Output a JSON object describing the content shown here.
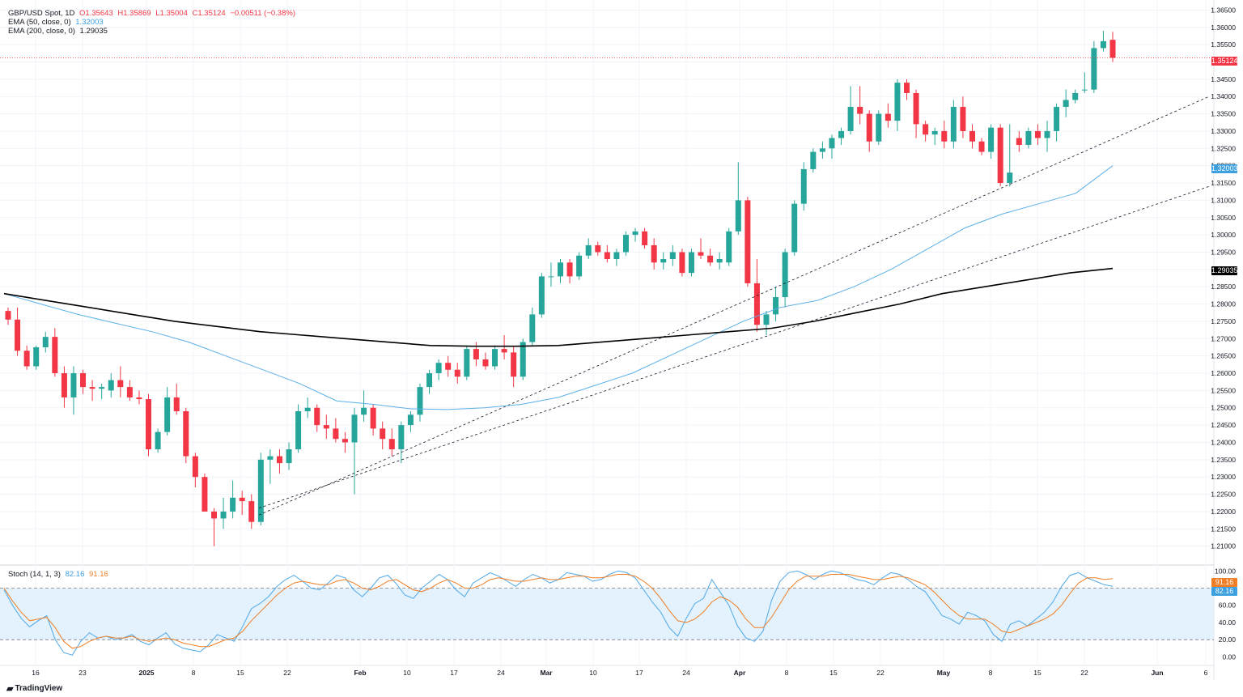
{
  "main_legend": {
    "symbol": "GBP/USD Spot, 1D",
    "open": "O1.35643",
    "high": "H1.35869",
    "low": "L1.35004",
    "close": "C1.35124",
    "change": "−0.00511 (−0.38%)",
    "ema50_label": "EMA (50, close, 0)",
    "ema50_value": "1.32003",
    "ema200_label": "EMA (200, close, 0)",
    "ema200_value": "1.29035"
  },
  "stoch_legend": {
    "label": "Stoch (14, 1, 3)",
    "k_value": "82.16",
    "d_value": "91.16"
  },
  "price_tags": {
    "last": "1.35124",
    "ema50": "1.32003",
    "ema200": "1.29035",
    "stoch_d": "91.16",
    "stoch_k": "82.16"
  },
  "branding": "TradingView",
  "colors": {
    "up": "#26a69a",
    "down": "#f23645",
    "ema50": "#5bb0e8",
    "ema200": "#000000",
    "stoch_k": "#4fa8e6",
    "stoch_d": "#f07e26",
    "stoch_band": "#e3f2fd"
  },
  "chart_data": [
    {
      "type": "candlestick",
      "title": "GBP/USD Spot, 1D",
      "y_axis_ticks": [
        "1.36500",
        "1.36000",
        "1.35500",
        "1.35000",
        "1.34500",
        "1.34000",
        "1.33500",
        "1.33000",
        "1.32500",
        "1.32000",
        "1.31500",
        "1.31000",
        "1.30500",
        "1.30000",
        "1.29500",
        "1.29000",
        "1.28500",
        "1.28000",
        "1.27500",
        "1.27000",
        "1.26500",
        "1.26000",
        "1.25500",
        "1.25000",
        "1.24500",
        "1.24000",
        "1.23500",
        "1.23000",
        "1.22500",
        "1.22000",
        "1.21500",
        "1.21000"
      ],
      "x_axis_ticks": [
        "16",
        "23",
        "2025",
        "8",
        "15",
        "22",
        "Feb",
        "10",
        "17",
        "24",
        "Mar",
        "10",
        "17",
        "24",
        "Apr",
        "8",
        "15",
        "22",
        "May",
        "8",
        "15",
        "22",
        "Jun",
        "6"
      ],
      "ylim": [
        1.205,
        1.3665
      ],
      "candles_ohlc": [
        [
          1.278,
          1.279,
          1.274,
          1.2755
        ],
        [
          1.2755,
          1.279,
          1.265,
          1.2665
        ],
        [
          1.2665,
          1.268,
          1.261,
          1.262
        ],
        [
          1.262,
          1.268,
          1.261,
          1.2675
        ],
        [
          1.2675,
          1.272,
          1.266,
          1.2705
        ],
        [
          1.2705,
          1.273,
          1.259,
          1.26
        ],
        [
          1.26,
          1.262,
          1.25,
          1.253
        ],
        [
          1.253,
          1.262,
          1.248,
          1.26
        ],
        [
          1.26,
          1.261,
          1.254,
          1.256
        ],
        [
          1.256,
          1.258,
          1.252,
          1.2555
        ],
        [
          1.2555,
          1.257,
          1.2525,
          1.256
        ],
        [
          1.255,
          1.26,
          1.253,
          1.258
        ],
        [
          1.258,
          1.262,
          1.253,
          1.256
        ],
        [
          1.256,
          1.258,
          1.252,
          1.253
        ],
        [
          1.253,
          1.255,
          1.251,
          1.2525
        ],
        [
          1.2525,
          1.254,
          1.236,
          1.238
        ],
        [
          1.238,
          1.244,
          1.237,
          1.243
        ],
        [
          1.243,
          1.256,
          1.242,
          1.253
        ],
        [
          1.253,
          1.257,
          1.248,
          1.249
        ],
        [
          1.249,
          1.25,
          1.234,
          1.236
        ],
        [
          1.236,
          1.237,
          1.227,
          1.23
        ],
        [
          1.23,
          1.231,
          1.221,
          1.22
        ],
        [
          1.22,
          1.221,
          1.21,
          1.218
        ],
        [
          1.218,
          1.224,
          1.215,
          1.22
        ],
        [
          1.22,
          1.229,
          1.218,
          1.224
        ],
        [
          1.224,
          1.226,
          1.219,
          1.223
        ],
        [
          1.223,
          1.225,
          1.215,
          1.217
        ],
        [
          1.217,
          1.237,
          1.216,
          1.235
        ],
        [
          1.235,
          1.238,
          1.228,
          1.236
        ],
        [
          1.236,
          1.238,
          1.231,
          1.234
        ],
        [
          1.234,
          1.24,
          1.232,
          1.238
        ],
        [
          1.238,
          1.251,
          1.237,
          1.249
        ],
        [
          1.249,
          1.253,
          1.247,
          1.25
        ],
        [
          1.25,
          1.251,
          1.243,
          1.245
        ],
        [
          1.245,
          1.248,
          1.241,
          1.244
        ],
        [
          1.244,
          1.247,
          1.24,
          1.241
        ],
        [
          1.241,
          1.243,
          1.237,
          1.24
        ],
        [
          1.24,
          1.25,
          1.225,
          1.248
        ],
        [
          1.248,
          1.255,
          1.246,
          1.25
        ],
        [
          1.25,
          1.251,
          1.242,
          1.244
        ],
        [
          1.244,
          1.246,
          1.238,
          1.241
        ],
        [
          1.241,
          1.244,
          1.236,
          1.238
        ],
        [
          1.238,
          1.246,
          1.234,
          1.245
        ],
        [
          1.245,
          1.249,
          1.243,
          1.248
        ],
        [
          1.248,
          1.257,
          1.246,
          1.256
        ],
        [
          1.256,
          1.261,
          1.254,
          1.26
        ],
        [
          1.26,
          1.264,
          1.258,
          1.263
        ],
        [
          1.263,
          1.265,
          1.259,
          1.261
        ],
        [
          1.261,
          1.263,
          1.257,
          1.259
        ],
        [
          1.259,
          1.268,
          1.258,
          1.267
        ],
        [
          1.267,
          1.269,
          1.262,
          1.264
        ],
        [
          1.264,
          1.266,
          1.261,
          1.262
        ],
        [
          1.262,
          1.268,
          1.261,
          1.267
        ],
        [
          1.267,
          1.271,
          1.264,
          1.266
        ],
        [
          1.266,
          1.268,
          1.256,
          1.259
        ],
        [
          1.259,
          1.27,
          1.258,
          1.269
        ],
        [
          1.269,
          1.279,
          1.268,
          1.277
        ],
        [
          1.277,
          1.289,
          1.276,
          1.288
        ],
        [
          1.288,
          1.292,
          1.285,
          1.288
        ],
        [
          1.288,
          1.293,
          1.286,
          1.292
        ],
        [
          1.292,
          1.293,
          1.286,
          1.288
        ],
        [
          1.288,
          1.295,
          1.287,
          1.294
        ],
        [
          1.294,
          1.299,
          1.293,
          1.297
        ],
        [
          1.297,
          1.298,
          1.294,
          1.295
        ],
        [
          1.295,
          1.297,
          1.292,
          1.293
        ],
        [
          1.293,
          1.296,
          1.291,
          1.295
        ],
        [
          1.295,
          1.301,
          1.294,
          1.3
        ],
        [
          1.3,
          1.302,
          1.298,
          1.301
        ],
        [
          1.301,
          1.302,
          1.296,
          1.297
        ],
        [
          1.297,
          1.299,
          1.29,
          1.292
        ],
        [
          1.292,
          1.295,
          1.29,
          1.293
        ],
        [
          1.293,
          1.297,
          1.291,
          1.295
        ],
        [
          1.295,
          1.296,
          1.288,
          1.289
        ],
        [
          1.289,
          1.296,
          1.288,
          1.295
        ],
        [
          1.295,
          1.299,
          1.293,
          1.294
        ],
        [
          1.294,
          1.296,
          1.291,
          1.292
        ],
        [
          1.292,
          1.295,
          1.29,
          1.293
        ],
        [
          1.292,
          1.302,
          1.291,
          1.301
        ],
        [
          1.301,
          1.321,
          1.3,
          1.31
        ],
        [
          1.31,
          1.311,
          1.285,
          1.286
        ],
        [
          1.286,
          1.293,
          1.272,
          1.274
        ],
        [
          1.274,
          1.278,
          1.271,
          1.277
        ],
        [
          1.277,
          1.285,
          1.275,
          1.282
        ],
        [
          1.282,
          1.296,
          1.279,
          1.295
        ],
        [
          1.295,
          1.31,
          1.294,
          1.309
        ],
        [
          1.309,
          1.321,
          1.307,
          1.319
        ],
        [
          1.319,
          1.325,
          1.318,
          1.324
        ],
        [
          1.324,
          1.327,
          1.322,
          1.325
        ],
        [
          1.325,
          1.329,
          1.322,
          1.328
        ],
        [
          1.328,
          1.331,
          1.326,
          1.33
        ],
        [
          1.33,
          1.343,
          1.329,
          1.337
        ],
        [
          1.337,
          1.343,
          1.332,
          1.335
        ],
        [
          1.335,
          1.336,
          1.324,
          1.327
        ],
        [
          1.327,
          1.336,
          1.326,
          1.335
        ],
        [
          1.335,
          1.338,
          1.331,
          1.333
        ],
        [
          1.333,
          1.345,
          1.33,
          1.344
        ],
        [
          1.344,
          1.345,
          1.339,
          1.341
        ],
        [
          1.341,
          1.342,
          1.328,
          1.332
        ],
        [
          1.332,
          1.333,
          1.327,
          1.329
        ],
        [
          1.329,
          1.331,
          1.326,
          1.33
        ],
        [
          1.33,
          1.333,
          1.325,
          1.327
        ],
        [
          1.327,
          1.339,
          1.325,
          1.337
        ],
        [
          1.337,
          1.34,
          1.328,
          1.33
        ],
        [
          1.33,
          1.332,
          1.325,
          1.327
        ],
        [
          1.327,
          1.328,
          1.323,
          1.324
        ],
        [
          1.324,
          1.332,
          1.322,
          1.331
        ],
        [
          1.331,
          1.332,
          1.314,
          1.315
        ],
        [
          1.315,
          1.332,
          1.314,
          1.318
        ],
        [
          1.328,
          1.33,
          1.324,
          1.326
        ],
        [
          1.326,
          1.331,
          1.325,
          1.33
        ],
        [
          1.33,
          1.332,
          1.326,
          1.328
        ],
        [
          1.328,
          1.333,
          1.324,
          1.33
        ],
        [
          1.33,
          1.338,
          1.327,
          1.337
        ],
        [
          1.337,
          1.342,
          1.334,
          1.339
        ],
        [
          1.339,
          1.342,
          1.338,
          1.341
        ],
        [
          1.342,
          1.347,
          1.341,
          1.342
        ],
        [
          1.342,
          1.356,
          1.341,
          1.354
        ],
        [
          1.354,
          1.359,
          1.353,
          1.356
        ],
        [
          1.3564,
          1.3587,
          1.35,
          1.3512
        ]
      ],
      "ema50": [
        1.283,
        1.28,
        1.277,
        1.2745,
        1.272,
        1.269,
        1.265,
        1.261,
        1.257,
        1.252,
        1.251,
        1.2497,
        1.2495,
        1.25,
        1.251,
        1.253,
        1.2565,
        1.26,
        1.265,
        1.27,
        1.275,
        1.279,
        1.281,
        1.285,
        1.29,
        1.296,
        1.302,
        1.306,
        1.309,
        1.312,
        1.32
      ],
      "ema200": [
        1.283,
        1.281,
        1.279,
        1.277,
        1.275,
        1.2735,
        1.272,
        1.271,
        1.27,
        1.269,
        1.268,
        1.2678,
        1.2678,
        1.268,
        1.269,
        1.27,
        1.271,
        1.272,
        1.273,
        1.275,
        1.2775,
        1.28,
        1.283,
        1.285,
        1.287,
        1.289,
        1.2903
      ],
      "trendlines": [
        {
          "from": [
            1.219,
            1.221
          ],
          "to": [
            1.34,
            1.34
          ]
        },
        {
          "from": [
            1.221,
            1.223
          ],
          "to": [
            1.314,
            1.314
          ]
        }
      ]
    },
    {
      "type": "line",
      "title": "Stoch (14, 1, 3)",
      "y_axis_ticks": [
        "100.00",
        "80.00",
        "60.00",
        "40.00",
        "20.00",
        "0.00"
      ],
      "ylim": [
        -10,
        105
      ],
      "band": [
        20,
        80
      ],
      "series": [
        {
          "name": "82.16",
          "values": [
            78,
            60,
            45,
            35,
            42,
            48,
            20,
            5,
            2,
            18,
            28,
            22,
            24,
            20,
            22,
            26,
            18,
            14,
            22,
            28,
            15,
            10,
            8,
            6,
            14,
            26,
            22,
            18,
            36,
            56,
            62,
            70,
            82,
            90,
            95,
            88,
            80,
            78,
            86,
            95,
            92,
            78,
            70,
            80,
            92,
            95,
            85,
            72,
            68,
            80,
            88,
            96,
            90,
            78,
            70,
            86,
            92,
            98,
            94,
            88,
            82,
            90,
            96,
            92,
            86,
            90,
            98,
            96,
            94,
            88,
            90,
            96,
            100,
            98,
            92,
            78,
            64,
            52,
            34,
            24,
            45,
            62,
            68,
            90,
            75,
            60,
            36,
            22,
            18,
            30,
            66,
            88,
            98,
            100,
            96,
            90,
            96,
            100,
            98,
            94,
            90,
            88,
            84,
            92,
            98,
            96,
            90,
            82,
            76,
            62,
            48,
            44,
            38,
            52,
            48,
            42,
            26,
            18,
            38,
            42,
            36,
            44,
            52,
            64,
            82,
            95,
            98,
            92,
            88,
            84,
            82.16
          ]
        },
        {
          "name": "91.16",
          "values": [
            80,
            65,
            52,
            42,
            44,
            46,
            34,
            18,
            10,
            12,
            18,
            22,
            24,
            22,
            22,
            24,
            20,
            18,
            20,
            22,
            20,
            16,
            14,
            12,
            12,
            16,
            20,
            22,
            30,
            42,
            52,
            62,
            72,
            80,
            86,
            88,
            86,
            84,
            84,
            88,
            90,
            86,
            80,
            78,
            82,
            88,
            90,
            84,
            78,
            76,
            80,
            86,
            90,
            86,
            80,
            80,
            84,
            90,
            92,
            90,
            88,
            88,
            90,
            92,
            90,
            90,
            92,
            94,
            94,
            92,
            92,
            94,
            96,
            96,
            94,
            88,
            80,
            68,
            54,
            42,
            40,
            44,
            52,
            64,
            70,
            66,
            58,
            44,
            34,
            34,
            46,
            62,
            78,
            88,
            94,
            94,
            94,
            96,
            96,
            96,
            94,
            92,
            90,
            90,
            92,
            94,
            92,
            88,
            84,
            76,
            66,
            56,
            48,
            44,
            44,
            44,
            38,
            30,
            28,
            32,
            36,
            40,
            44,
            50,
            60,
            74,
            86,
            92,
            92,
            90,
            91.16
          ]
        }
      ]
    }
  ]
}
